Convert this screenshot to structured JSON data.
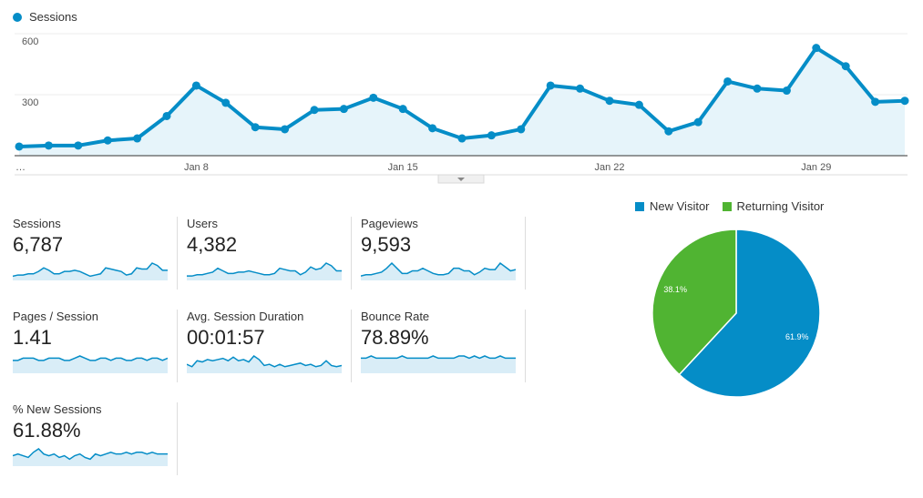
{
  "chart_data": [
    {
      "type": "area",
      "legend": [
        "Sessions"
      ],
      "series": [
        {
          "name": "Sessions",
          "values": [
            45,
            50,
            50,
            75,
            85,
            195,
            345,
            260,
            140,
            130,
            225,
            230,
            285,
            230,
            135,
            85,
            100,
            130,
            345,
            330,
            270,
            250,
            120,
            165,
            365,
            330,
            320,
            530,
            440,
            265,
            270
          ]
        }
      ],
      "y_ticks": [
        300,
        600
      ],
      "ylim": [
        0,
        600
      ],
      "x_labels": [
        {
          "index": 6,
          "label": "Jan 8"
        },
        {
          "index": 13,
          "label": "Jan 15"
        },
        {
          "index": 20,
          "label": "Jan 22"
        },
        {
          "index": 27,
          "label": "Jan 29"
        }
      ],
      "x_first_label": "…",
      "grid": true
    },
    {
      "type": "pie",
      "legend_placement": "top",
      "slices": [
        {
          "name": "New Visitor",
          "value": 61.9,
          "label": "61.9%",
          "color": "#058dc7"
        },
        {
          "name": "Returning Visitor",
          "value": 38.1,
          "label": "38.1%",
          "color": "#50b432"
        }
      ]
    }
  ],
  "metrics": [
    {
      "label": "Sessions",
      "value": "6,787",
      "spark": [
        2,
        3,
        3,
        4,
        4,
        6,
        9,
        7,
        4,
        4,
        6,
        6,
        7,
        6,
        4,
        2,
        3,
        4,
        9,
        8,
        7,
        6,
        3,
        4,
        9,
        8,
        8,
        13,
        11,
        7,
        7
      ]
    },
    {
      "label": "Users",
      "value": "4,382",
      "spark": [
        2,
        2,
        3,
        3,
        4,
        5,
        8,
        6,
        4,
        4,
        5,
        5,
        6,
        5,
        4,
        3,
        3,
        4,
        8,
        7,
        6,
        6,
        3,
        5,
        9,
        7,
        8,
        12,
        10,
        6,
        6
      ]
    },
    {
      "label": "Pageviews",
      "value": "9,593",
      "spark": [
        2,
        3,
        3,
        4,
        5,
        8,
        12,
        8,
        4,
        4,
        6,
        6,
        8,
        6,
        4,
        3,
        3,
        4,
        8,
        8,
        6,
        6,
        3,
        5,
        8,
        7,
        7,
        12,
        9,
        6,
        7
      ]
    },
    {
      "label": "Pages / Session",
      "value": "1.41",
      "spark": [
        5,
        5,
        6,
        6,
        6,
        5,
        5,
        6,
        6,
        6,
        5,
        5,
        6,
        7,
        6,
        5,
        5,
        6,
        6,
        5,
        6,
        6,
        5,
        5,
        6,
        6,
        5,
        6,
        6,
        5,
        6
      ]
    },
    {
      "label": "Avg. Session Duration",
      "value": "00:01:57",
      "spark": [
        6,
        4,
        9,
        8,
        10,
        9,
        10,
        11,
        9,
        12,
        9,
        10,
        8,
        13,
        10,
        5,
        6,
        4,
        6,
        4,
        5,
        6,
        7,
        5,
        6,
        4,
        5,
        9,
        5,
        4,
        5
      ]
    },
    {
      "label": "Bounce Rate",
      "value": "78.89%",
      "spark": [
        6,
        6,
        7,
        6,
        6,
        6,
        6,
        6,
        7,
        6,
        6,
        6,
        6,
        6,
        7,
        6,
        6,
        6,
        6,
        7,
        7,
        6,
        7,
        6,
        7,
        6,
        6,
        7,
        6,
        6,
        6
      ]
    },
    {
      "label": "% New Sessions",
      "value": "61.88%",
      "spark": [
        5,
        6,
        5,
        4,
        7,
        9,
        6,
        5,
        6,
        4,
        5,
        3,
        5,
        6,
        4,
        3,
        6,
        5,
        6,
        7,
        6,
        6,
        7,
        6,
        7,
        7,
        6,
        7,
        6,
        6,
        6
      ]
    }
  ],
  "colors": {
    "sessions_line": "#058dc7",
    "area_fill": "#e6f4fa",
    "spark_fill": "#d9edf7",
    "new_visitor": "#058dc7",
    "returning_visitor": "#50b432"
  }
}
